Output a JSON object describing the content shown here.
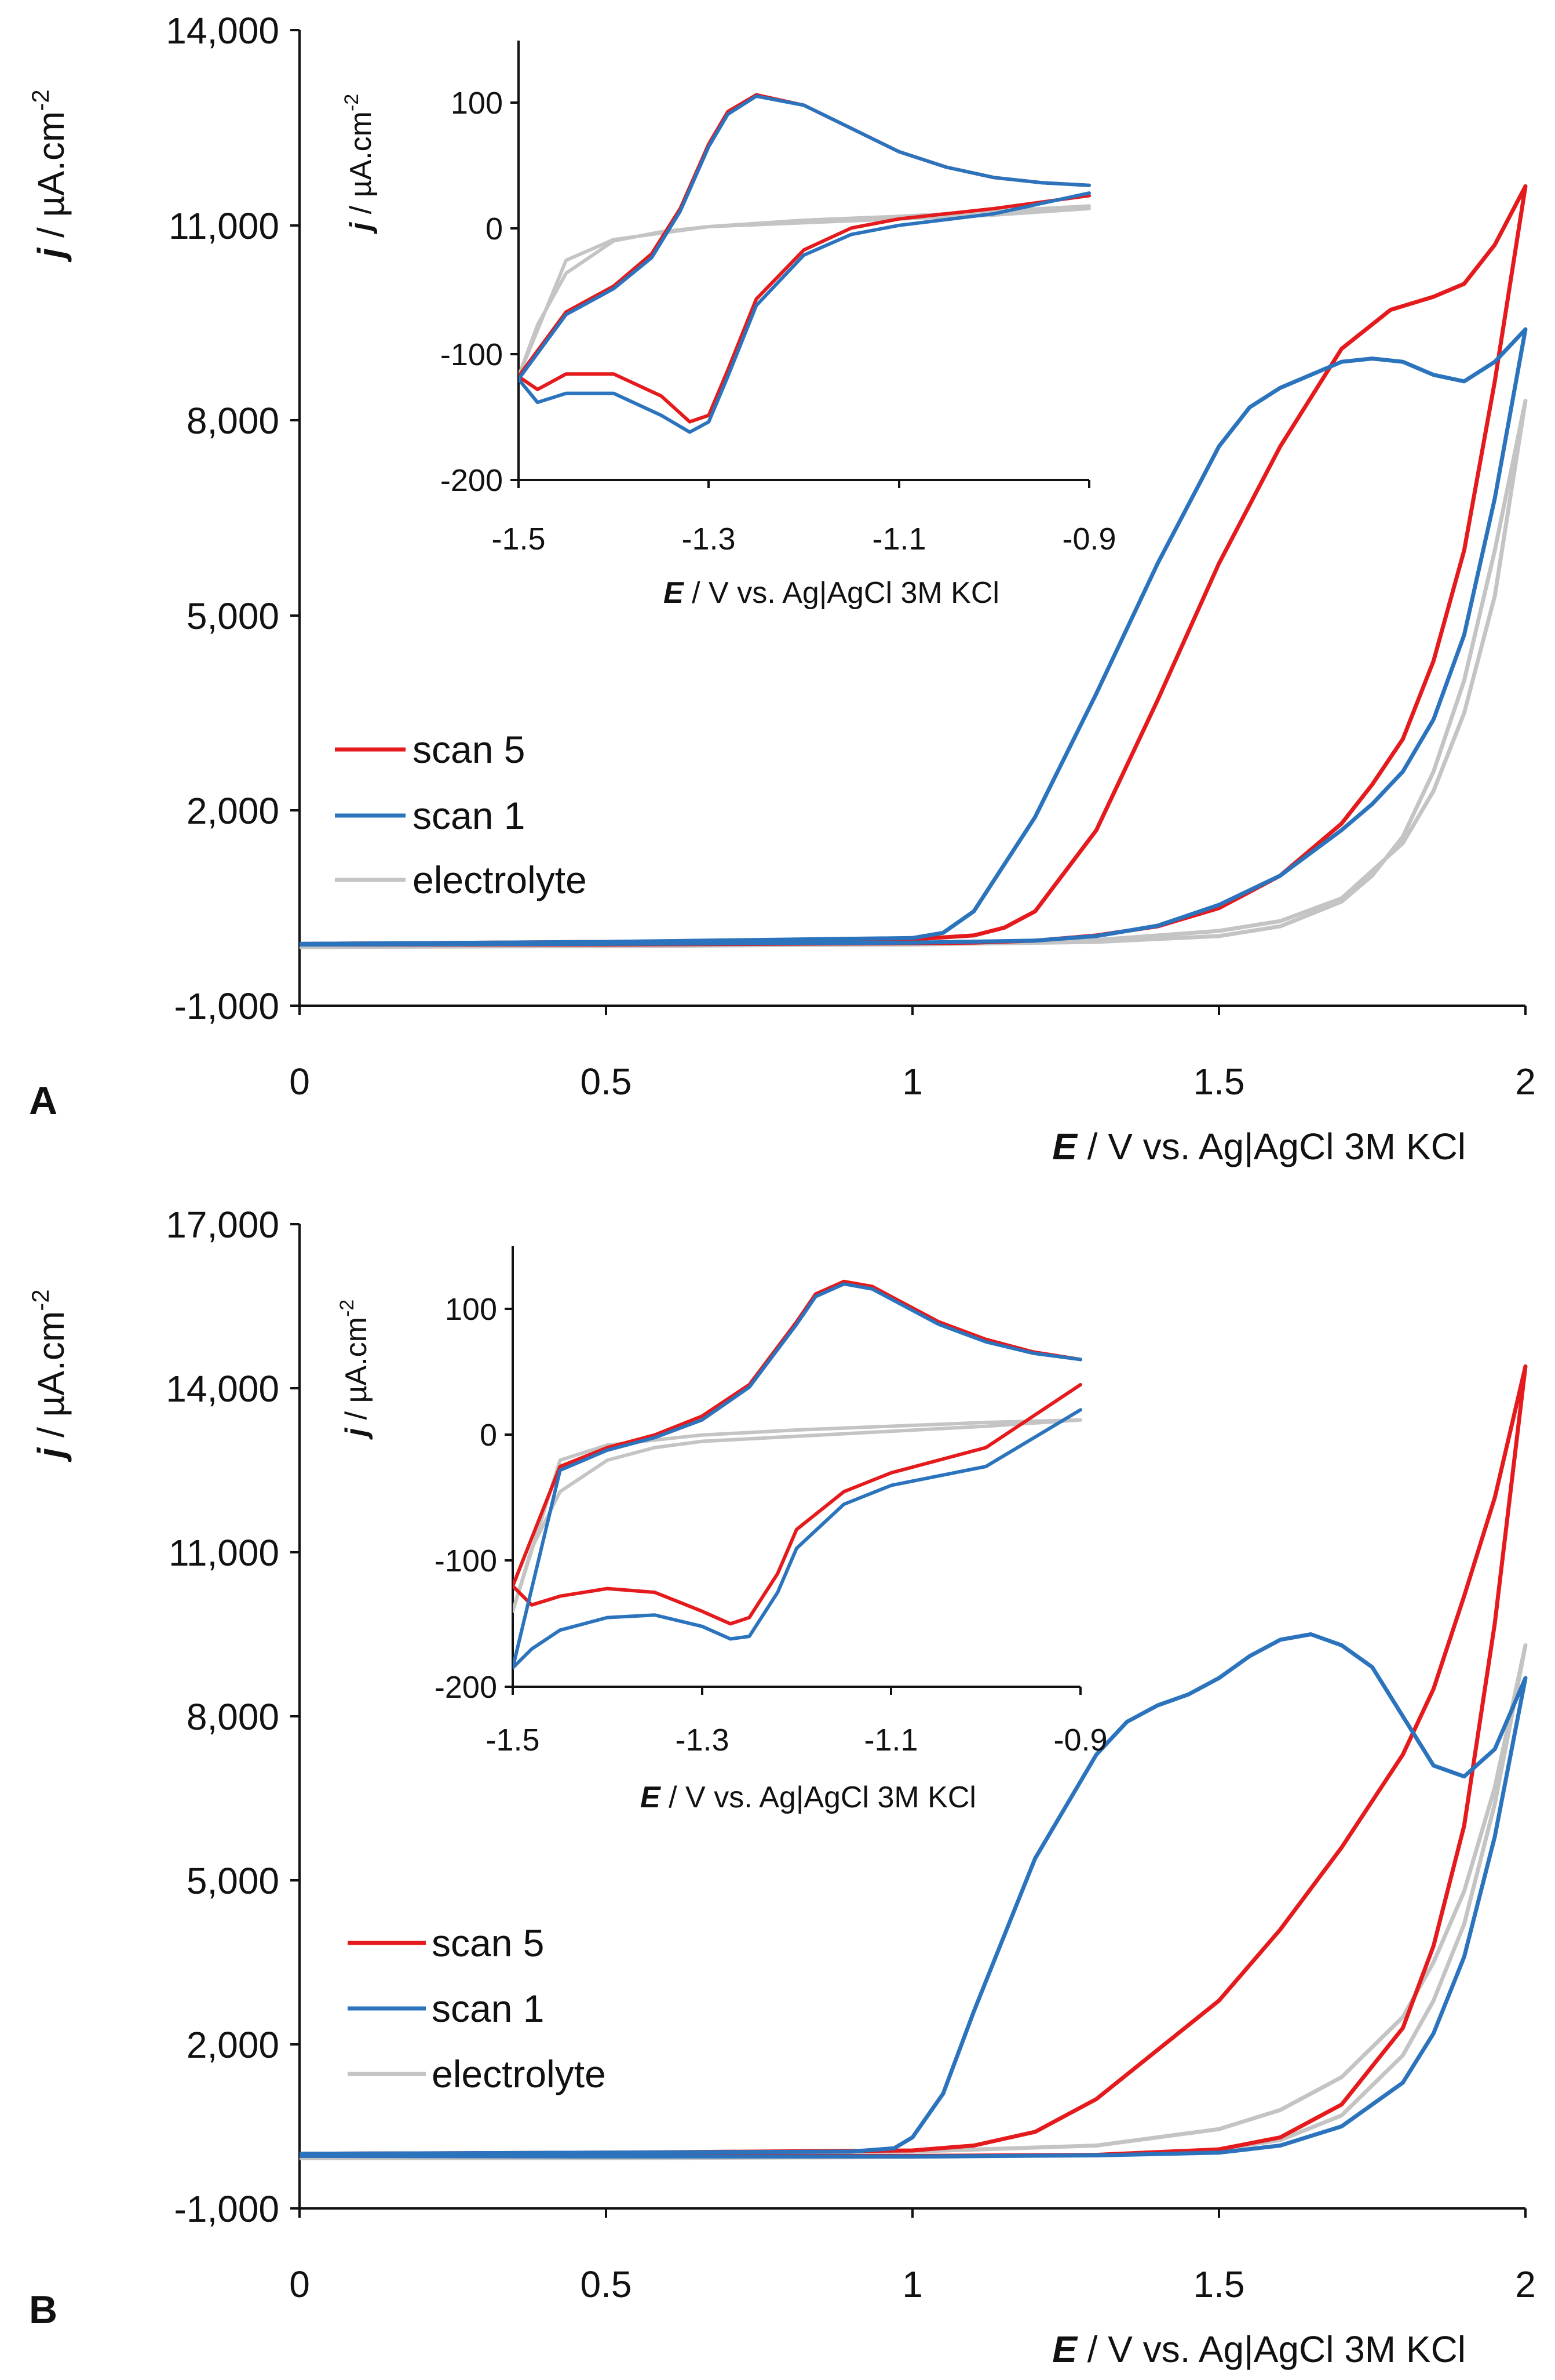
{
  "colors": {
    "scan5": "#e41a1c",
    "scan1": "#2b74bd",
    "electrolyte": "#c4c4c4",
    "axis": "#111111"
  },
  "chart_data": [
    {
      "panel": "A",
      "type": "line",
      "title": "",
      "xlabel": {
        "italic": "E",
        "rest": " / V vs. Ag|AgCl 3M KCl"
      },
      "ylabel": {
        "italic": "j",
        "rest": " / µA.cm",
        "sup": "-2"
      },
      "xlim": [
        0,
        2
      ],
      "ylim": [
        -1000,
        14000
      ],
      "xticks": [
        "0",
        "0.5",
        "1",
        "1.5",
        "2"
      ],
      "xtick_values": [
        0,
        0.5,
        1,
        1.5,
        2
      ],
      "yticks": [
        "-1,000",
        "2,000",
        "5,000",
        "8,000",
        "11,000",
        "14,000"
      ],
      "ytick_values": [
        -1000,
        2000,
        5000,
        8000,
        11000,
        14000
      ],
      "legend": [
        {
          "key": "scan5",
          "label": "scan 5"
        },
        {
          "key": "scan1",
          "label": "scan 1"
        },
        {
          "key": "electrolyte",
          "label": "electrolyte"
        }
      ],
      "series": [
        {
          "name": "electrolyte",
          "key": "electrolyte",
          "x": [
            0,
            0.3,
            0.6,
            0.9,
            1.1,
            1.3,
            1.5,
            1.6,
            1.7,
            1.8,
            1.85,
            1.9,
            1.95,
            2.0,
            1.95,
            1.9,
            1.85,
            1.8,
            1.75,
            1.7,
            1.6,
            1.5,
            1.3,
            1.0,
            0.5,
            0
          ],
          "y": [
            -100,
            -90,
            -80,
            -60,
            -40,
            10,
            150,
            300,
            650,
            1500,
            2300,
            3500,
            5300,
            8300,
            6000,
            4000,
            2600,
            1600,
            1000,
            600,
            220,
            70,
            -20,
            -60,
            -80,
            -100
          ]
        },
        {
          "name": "scan 5",
          "key": "scan5",
          "x": [
            0,
            0.5,
            1.0,
            1.1,
            1.15,
            1.2,
            1.3,
            1.4,
            1.5,
            1.6,
            1.7,
            1.78,
            1.85,
            1.9,
            1.95,
            2.0,
            1.95,
            1.9,
            1.85,
            1.8,
            1.75,
            1.7,
            1.6,
            1.5,
            1.4,
            1.3,
            1.2,
            1.1,
            1.0,
            0.5,
            0
          ],
          "y": [
            -50,
            -20,
            20,
            80,
            200,
            450,
            1700,
            3700,
            5800,
            7600,
            9100,
            9700,
            9900,
            10100,
            10700,
            11600,
            8600,
            6000,
            4300,
            3100,
            2400,
            1800,
            1000,
            500,
            220,
            80,
            0,
            -30,
            -40,
            -60,
            -60
          ]
        },
        {
          "name": "scan 1",
          "key": "scan1",
          "x": [
            0,
            0.5,
            1.0,
            1.05,
            1.1,
            1.2,
            1.3,
            1.4,
            1.5,
            1.55,
            1.6,
            1.7,
            1.75,
            1.8,
            1.85,
            1.9,
            1.95,
            2.0,
            1.95,
            1.9,
            1.85,
            1.8,
            1.75,
            1.7,
            1.6,
            1.5,
            1.4,
            1.3,
            1.2,
            1.0,
            0.5,
            0
          ],
          "y": [
            -50,
            -20,
            40,
            120,
            450,
            1900,
            3800,
            5800,
            7600,
            8200,
            8500,
            8900,
            8950,
            8900,
            8700,
            8600,
            8900,
            9400,
            6800,
            4700,
            3400,
            2600,
            2100,
            1700,
            1000,
            550,
            230,
            70,
            0,
            -30,
            -50,
            -60
          ]
        }
      ],
      "inset": {
        "xlabel": {
          "italic": "E",
          "rest": " / V vs. Ag|AgCl 3M KCl"
        },
        "ylabel": {
          "italic": "j",
          "rest": " / µA.cm",
          "sup": "-2"
        },
        "xlim": [
          -1.5,
          -0.9
        ],
        "ylim": [
          -200,
          140
        ],
        "xticks": [
          "-1.5",
          "-1.3",
          "-1.1",
          "-0.9"
        ],
        "xtick_values": [
          -1.5,
          -1.3,
          -1.1,
          -0.9
        ],
        "yticks": [
          "-200",
          "-100",
          "0",
          "100"
        ],
        "ytick_values": [
          -200,
          -100,
          0,
          100
        ],
        "series": [
          {
            "name": "electrolyte",
            "key": "electrolyte",
            "x": [
              -0.9,
              -1.0,
              -1.1,
              -1.2,
              -1.3,
              -1.4,
              -1.45,
              -1.5,
              -1.48,
              -1.45,
              -1.4,
              -1.35,
              -1.3,
              -1.2,
              -1.1,
              -1.0,
              -0.9
            ],
            "y": [
              12,
              8,
              4,
              1,
              -4,
              -14,
              -30,
              -120,
              -80,
              -40,
              -15,
              -8,
              -4,
              -1,
              2,
              5,
              10
            ]
          },
          {
            "name": "scan 5",
            "key": "scan5",
            "x": [
              -0.9,
              -0.95,
              -1.0,
              -1.05,
              -1.1,
              -1.15,
              -1.2,
              -1.25,
              -1.28,
              -1.3,
              -1.33,
              -1.36,
              -1.4,
              -1.45,
              -1.5,
              -1.48,
              -1.45,
              -1.4,
              -1.35,
              -1.32,
              -1.3,
              -1.28,
              -1.25,
              -1.2,
              -1.15,
              -1.1,
              -1.0,
              -0.9
            ],
            "y": [
              28,
              30,
              34,
              42,
              54,
              72,
              90,
              98,
              85,
              60,
              10,
              -25,
              -50,
              -70,
              -120,
              -130,
              -118,
              -118,
              -135,
              -155,
              -150,
              -115,
              -60,
              -22,
              -5,
              2,
              10,
              20
            ]
          },
          {
            "name": "scan 1",
            "key": "scan1",
            "x": [
              -0.9,
              -0.95,
              -1.0,
              -1.05,
              -1.1,
              -1.15,
              -1.2,
              -1.25,
              -1.28,
              -1.3,
              -1.33,
              -1.36,
              -1.4,
              -1.45,
              -1.5,
              -1.48,
              -1.45,
              -1.4,
              -1.35,
              -1.32,
              -1.3,
              -1.28,
              -1.25,
              -1.2,
              -1.15,
              -1.1,
              -1.0,
              -0.9
            ],
            "y": [
              28,
              30,
              34,
              42,
              54,
              72,
              90,
              97,
              83,
              58,
              8,
              -28,
              -52,
              -72,
              -122,
              -140,
              -133,
              -133,
              -150,
              -163,
              -155,
              -120,
              -65,
              -26,
              -10,
              -3,
              6,
              22
            ]
          }
        ]
      }
    },
    {
      "panel": "B",
      "type": "line",
      "title": "",
      "xlabel": {
        "italic": "E",
        "rest": " / V vs. Ag|AgCl 3M KCl"
      },
      "ylabel": {
        "italic": "j",
        "rest": " / µA.cm",
        "sup": "-2"
      },
      "xlim": [
        0,
        2
      ],
      "ylim": [
        -1000,
        17000
      ],
      "xticks": [
        "0",
        "0.5",
        "1",
        "1.5",
        "2"
      ],
      "xtick_values": [
        0,
        0.5,
        1,
        1.5,
        2
      ],
      "yticks": [
        "-1,000",
        "2,000",
        "5,000",
        "8,000",
        "11,000",
        "14,000",
        "17,000"
      ],
      "ytick_values": [
        -1000,
        2000,
        5000,
        8000,
        11000,
        14000,
        17000
      ],
      "legend": [
        {
          "key": "scan5",
          "label": "scan 5"
        },
        {
          "key": "scan1",
          "label": "scan 1"
        },
        {
          "key": "electrolyte",
          "label": "electrolyte"
        }
      ],
      "series": [
        {
          "name": "electrolyte",
          "key": "electrolyte",
          "x": [
            0,
            0.5,
            1.0,
            1.3,
            1.5,
            1.6,
            1.7,
            1.8,
            1.85,
            1.9,
            1.95,
            2.0,
            1.95,
            1.9,
            1.85,
            1.8,
            1.7,
            1.6,
            1.5,
            1.3,
            1.0,
            0.5,
            0
          ],
          "y": [
            0,
            10,
            40,
            150,
            450,
            800,
            1400,
            2500,
            3500,
            4800,
            6700,
            9300,
            6400,
            4200,
            2800,
            1800,
            700,
            250,
            80,
            -20,
            -60,
            -80,
            -80
          ]
        },
        {
          "name": "scan 5",
          "key": "scan5",
          "x": [
            0,
            0.5,
            1.0,
            1.1,
            1.2,
            1.3,
            1.4,
            1.5,
            1.6,
            1.7,
            1.8,
            1.85,
            1.9,
            1.95,
            2.0,
            1.95,
            1.9,
            1.85,
            1.8,
            1.7,
            1.6,
            1.5,
            1.3,
            1.0,
            0.5,
            0
          ],
          "y": [
            0,
            20,
            60,
            150,
            400,
            1000,
            1900,
            2800,
            4100,
            5600,
            7300,
            8500,
            10200,
            12000,
            14400,
            9700,
            6000,
            3800,
            2300,
            900,
            300,
            80,
            -20,
            -40,
            -40,
            -40
          ]
        },
        {
          "name": "scan 1",
          "key": "scan1",
          "x": [
            0,
            0.5,
            0.9,
            0.97,
            1.0,
            1.05,
            1.1,
            1.2,
            1.3,
            1.35,
            1.4,
            1.45,
            1.5,
            1.55,
            1.6,
            1.65,
            1.7,
            1.75,
            1.8,
            1.85,
            1.9,
            1.95,
            2.0,
            1.95,
            1.9,
            1.85,
            1.8,
            1.7,
            1.6,
            1.5,
            1.3,
            1.0,
            0.5,
            0
          ],
          "y": [
            0,
            20,
            40,
            100,
            300,
            1100,
            2600,
            5400,
            7300,
            7900,
            8200,
            8400,
            8700,
            9100,
            9400,
            9500,
            9300,
            8900,
            8000,
            7100,
            6900,
            7400,
            8700,
            5800,
            3600,
            2200,
            1300,
            500,
            150,
            20,
            -30,
            -50,
            -50,
            -40
          ]
        }
      ],
      "inset": {
        "xlabel": {
          "italic": "E",
          "rest": " / V vs. Ag|AgCl 3M KCl"
        },
        "ylabel": {
          "italic": "j",
          "rest": " / µA.cm",
          "sup": "-2"
        },
        "xlim": [
          -1.5,
          -0.9
        ],
        "ylim": [
          -200,
          150
        ],
        "xticks": [
          "-1.5",
          "-1.3",
          "-1.1",
          "-0.9"
        ],
        "xtick_values": [
          -1.5,
          -1.3,
          -1.1,
          -0.9
        ],
        "yticks": [
          "-200",
          "-100",
          "0",
          "100"
        ],
        "ytick_values": [
          -200,
          -100,
          0,
          100
        ],
        "series": [
          {
            "name": "electrolyte",
            "key": "electrolyte",
            "x": [
              -0.9,
              -1.0,
              -1.1,
              -1.2,
              -1.3,
              -1.4,
              -1.45,
              -1.5,
              -1.48,
              -1.45,
              -1.4,
              -1.35,
              -1.3,
              -1.2,
              -1.1,
              -1.0,
              -0.9
            ],
            "y": [
              12,
              10,
              7,
              4,
              0,
              -8,
              -20,
              -140,
              -90,
              -45,
              -20,
              -10,
              -5,
              -1,
              3,
              7,
              12
            ]
          },
          {
            "name": "scan 5",
            "key": "scan5",
            "x": [
              -0.9,
              -0.95,
              -1.0,
              -1.05,
              -1.1,
              -1.12,
              -1.15,
              -1.18,
              -1.2,
              -1.25,
              -1.3,
              -1.35,
              -1.4,
              -1.45,
              -1.5,
              -1.48,
              -1.45,
              -1.4,
              -1.35,
              -1.3,
              -1.27,
              -1.25,
              -1.22,
              -1.2,
              -1.15,
              -1.1,
              -1.0,
              -0.9
            ],
            "y": [
              60,
              66,
              76,
              90,
              110,
              118,
              122,
              112,
              90,
              40,
              15,
              0,
              -10,
              -25,
              -120,
              -135,
              -128,
              -122,
              -125,
              -140,
              -150,
              -145,
              -110,
              -75,
              -45,
              -30,
              -10,
              40
            ]
          },
          {
            "name": "scan 1",
            "key": "scan1",
            "x": [
              -0.9,
              -0.95,
              -1.0,
              -1.05,
              -1.1,
              -1.12,
              -1.15,
              -1.18,
              -1.2,
              -1.25,
              -1.3,
              -1.35,
              -1.4,
              -1.45,
              -1.5,
              -1.48,
              -1.45,
              -1.4,
              -1.35,
              -1.3,
              -1.27,
              -1.25,
              -1.22,
              -1.2,
              -1.15,
              -1.1,
              -1.0,
              -0.9
            ],
            "y": [
              60,
              65,
              74,
              88,
              108,
              116,
              120,
              110,
              88,
              38,
              12,
              -2,
              -12,
              -28,
              -185,
              -170,
              -155,
              -145,
              -143,
              -152,
              -162,
              -160,
              -125,
              -90,
              -55,
              -40,
              -25,
              20
            ]
          }
        ]
      }
    }
  ]
}
